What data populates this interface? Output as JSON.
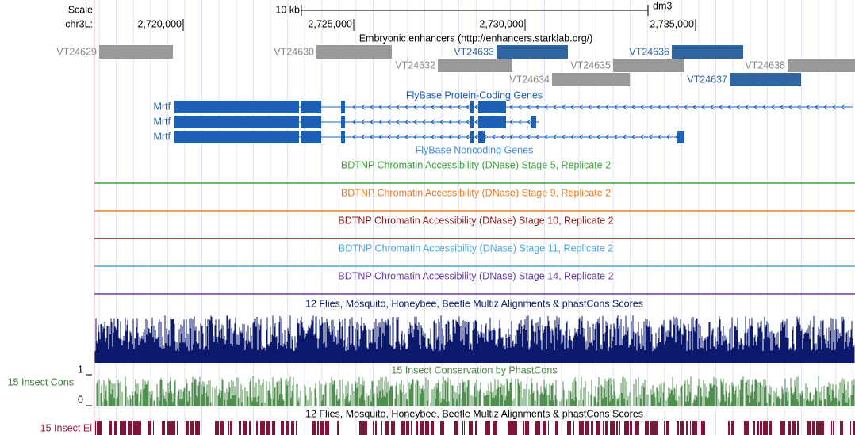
{
  "ruler": {
    "scale": "Scale",
    "scale_bar": "10 kb",
    "assembly": "dm3",
    "chrom": "chr3L:",
    "ticks": [
      "2,720,000",
      "2,725,000",
      "2,730,000",
      "2,735,000"
    ]
  },
  "enhancers": {
    "title": "Embryonic enhancers (http://enhancers.starklab.org/)",
    "items": [
      "VT24629",
      "VT24630",
      "VT24633",
      "VT24636",
      "VT24632",
      "VT24635",
      "VT24638",
      "VT24634",
      "VT24637"
    ]
  },
  "protein_genes": {
    "title": "FlyBase Protein-Coding Genes",
    "labels": [
      "Mrtf",
      "Mrtf",
      "Mrtf"
    ]
  },
  "noncoding_genes": {
    "title": "FlyBase Noncoding Genes"
  },
  "dnase": [
    "BDTNP Chromatin Accessibility (DNase) Stage 5, Replicate 2",
    "BDTNP Chromatin Accessibility (DNase) Stage 9, Replicate 2",
    "BDTNP Chromatin Accessibility (DNase) Stage 10, Replicate 2",
    "BDTNP Chromatin Accessibility (DNase) Stage 11, Replicate 2",
    "BDTNP Chromatin Accessibility (DNase) Stage 14, Replicate 2"
  ],
  "multiz": {
    "title": "12 Flies, Mosquito, Honeybee, Beetle Multiz Alignments & phastCons Scores"
  },
  "conservation": {
    "label": "15 Insect Cons",
    "title": "15 Insect Conservation by PhastCons",
    "max": "1",
    "min": "0"
  },
  "elements": {
    "title": "12 Flies, Mosquito, Honeybee, Beetle Multiz Alignments & phastCons Scores",
    "label": "15 Insect El"
  }
}
